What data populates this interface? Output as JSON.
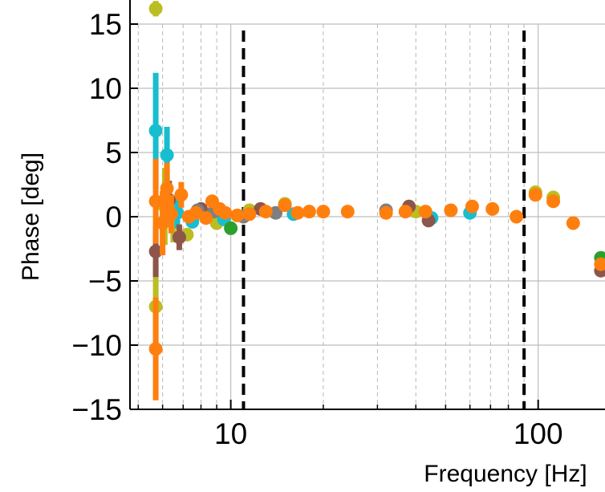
{
  "chart_data": {
    "type": "scatter",
    "title": "",
    "xlabel": "Frequency [Hz]",
    "ylabel": "Phase [deg]",
    "x_scale": "log",
    "xlim": [
      4.7,
      165
    ],
    "ylim": [
      -15,
      15
    ],
    "xticks": [
      {
        "value": 10,
        "label": "10"
      },
      {
        "value": 100,
        "label": "100"
      }
    ],
    "yticks": [
      {
        "value": 15,
        "label": "15"
      },
      {
        "value": 10,
        "label": "10"
      },
      {
        "value": 5,
        "label": "5"
      },
      {
        "value": 0,
        "label": "0"
      },
      {
        "value": -5,
        "label": "−5"
      },
      {
        "value": -10,
        "label": "−10"
      },
      {
        "value": -15,
        "label": "−15"
      }
    ],
    "minor_x_gridlines": [
      5,
      6,
      7,
      8,
      9,
      20,
      30,
      40,
      50,
      60,
      70,
      80,
      90
    ],
    "major_x_gridlines": [
      10,
      100
    ],
    "grid": true,
    "reference_lines": [
      {
        "x": 11.0,
        "style": "dashed",
        "color": "#000000"
      },
      {
        "x": 90.0,
        "style": "dashed",
        "color": "#000000"
      }
    ],
    "series": [
      {
        "color": "#bcbd22",
        "points": [
          {
            "x": 5.7,
            "y": 16.2,
            "err": 0.6
          },
          {
            "x": 5.7,
            "y": -7.0,
            "err": 3.5
          },
          {
            "x": 6.1,
            "y": 0.8,
            "err": 3.0
          },
          {
            "x": 6.5,
            "y": -0.5,
            "err": 1.5
          },
          {
            "x": 7.2,
            "y": -1.4,
            "err": 0.3
          },
          {
            "x": 9.0,
            "y": -0.5,
            "err": 0.3
          },
          {
            "x": 11.5,
            "y": 0.5,
            "err": 0.2
          },
          {
            "x": 15,
            "y": 1.0,
            "err": 0.2
          },
          {
            "x": 40,
            "y": 0.4,
            "err": 0.2
          },
          {
            "x": 98,
            "y": 1.9,
            "err": 0.2
          },
          {
            "x": 112,
            "y": 1.5,
            "err": 0.2
          }
        ]
      },
      {
        "color": "#17becf",
        "points": [
          {
            "x": 5.7,
            "y": 6.7,
            "err": 4.5
          },
          {
            "x": 6.2,
            "y": 4.8,
            "err": 2.2
          },
          {
            "x": 6.7,
            "y": 0.3,
            "err": 1.2
          },
          {
            "x": 7.5,
            "y": -0.4,
            "err": 0.4
          },
          {
            "x": 9.5,
            "y": -0.2,
            "err": 0.3
          },
          {
            "x": 16,
            "y": 0.2,
            "err": 0.2
          },
          {
            "x": 45,
            "y": -0.1,
            "err": 0.2
          },
          {
            "x": 60,
            "y": 0.3,
            "err": 0.2
          }
        ]
      },
      {
        "color": "#8c564b",
        "points": [
          {
            "x": 5.7,
            "y": -2.7,
            "err": 2.0
          },
          {
            "x": 6.3,
            "y": 1.3,
            "err": 1.5
          },
          {
            "x": 6.8,
            "y": -1.6,
            "err": 1.0
          },
          {
            "x": 8.0,
            "y": 0.6,
            "err": 0.3
          },
          {
            "x": 12.5,
            "y": 0.6,
            "err": 0.2
          },
          {
            "x": 38,
            "y": 0.8,
            "err": 0.2
          },
          {
            "x": 44,
            "y": -0.3,
            "err": 0.2
          },
          {
            "x": 160,
            "y": -4.2,
            "err": 0.3
          }
        ]
      },
      {
        "color": "#7f7f7f",
        "points": [
          {
            "x": 7.8,
            "y": 0.5,
            "err": 0.3
          },
          {
            "x": 8.8,
            "y": 0.4,
            "err": 0.3
          },
          {
            "x": 11,
            "y": 0.0,
            "err": 0.2
          },
          {
            "x": 14,
            "y": 0.3,
            "err": 0.2
          },
          {
            "x": 32,
            "y": 0.5,
            "err": 0.2
          }
        ]
      },
      {
        "color": "#2ca02c",
        "points": [
          {
            "x": 10,
            "y": -0.9,
            "err": 0.5
          },
          {
            "x": 160,
            "y": -3.2,
            "err": 0.3
          }
        ]
      },
      {
        "color": "#ff7f0e",
        "points": [
          {
            "x": 5.7,
            "y": 1.2,
            "err": 3.3
          },
          {
            "x": 5.7,
            "y": -10.3,
            "err": 4.0
          },
          {
            "x": 6.0,
            "y": -0.5,
            "err": 2.5
          },
          {
            "x": 6.2,
            "y": 2.2,
            "err": 2.0
          },
          {
            "x": 6.4,
            "y": 0.2,
            "err": 1.5
          },
          {
            "x": 6.9,
            "y": 1.7,
            "err": 1.0
          },
          {
            "x": 7.3,
            "y": 0.0,
            "err": 0.5
          },
          {
            "x": 7.7,
            "y": 0.3,
            "err": 0.4
          },
          {
            "x": 8.3,
            "y": -0.1,
            "err": 0.4
          },
          {
            "x": 8.7,
            "y": 1.2,
            "err": 0.4
          },
          {
            "x": 9.2,
            "y": 0.6,
            "err": 0.3
          },
          {
            "x": 9.6,
            "y": 0.3,
            "err": 0.3
          },
          {
            "x": 10.5,
            "y": 0.1,
            "err": 0.3
          },
          {
            "x": 11.5,
            "y": 0.2,
            "err": 0.3
          },
          {
            "x": 13,
            "y": 0.4,
            "err": 0.3
          },
          {
            "x": 15,
            "y": 0.9,
            "err": 0.2
          },
          {
            "x": 16.5,
            "y": 0.3,
            "err": 0.2
          },
          {
            "x": 18,
            "y": 0.4,
            "err": 0.2
          },
          {
            "x": 20,
            "y": 0.4,
            "err": 0.2
          },
          {
            "x": 24,
            "y": 0.4,
            "err": 0.2
          },
          {
            "x": 32,
            "y": 0.3,
            "err": 0.2
          },
          {
            "x": 37,
            "y": 0.4,
            "err": 0.2
          },
          {
            "x": 43,
            "y": 0.4,
            "err": 0.2
          },
          {
            "x": 52,
            "y": 0.5,
            "err": 0.2
          },
          {
            "x": 61,
            "y": 0.8,
            "err": 0.2
          },
          {
            "x": 71,
            "y": 0.6,
            "err": 0.2
          },
          {
            "x": 85,
            "y": 0.0,
            "err": 0.2
          },
          {
            "x": 98,
            "y": 1.7,
            "err": 0.3
          },
          {
            "x": 112,
            "y": 1.2,
            "err": 0.2
          },
          {
            "x": 130,
            "y": -0.5,
            "err": 0.3
          },
          {
            "x": 160,
            "y": -3.7,
            "err": 0.3
          }
        ]
      }
    ]
  }
}
